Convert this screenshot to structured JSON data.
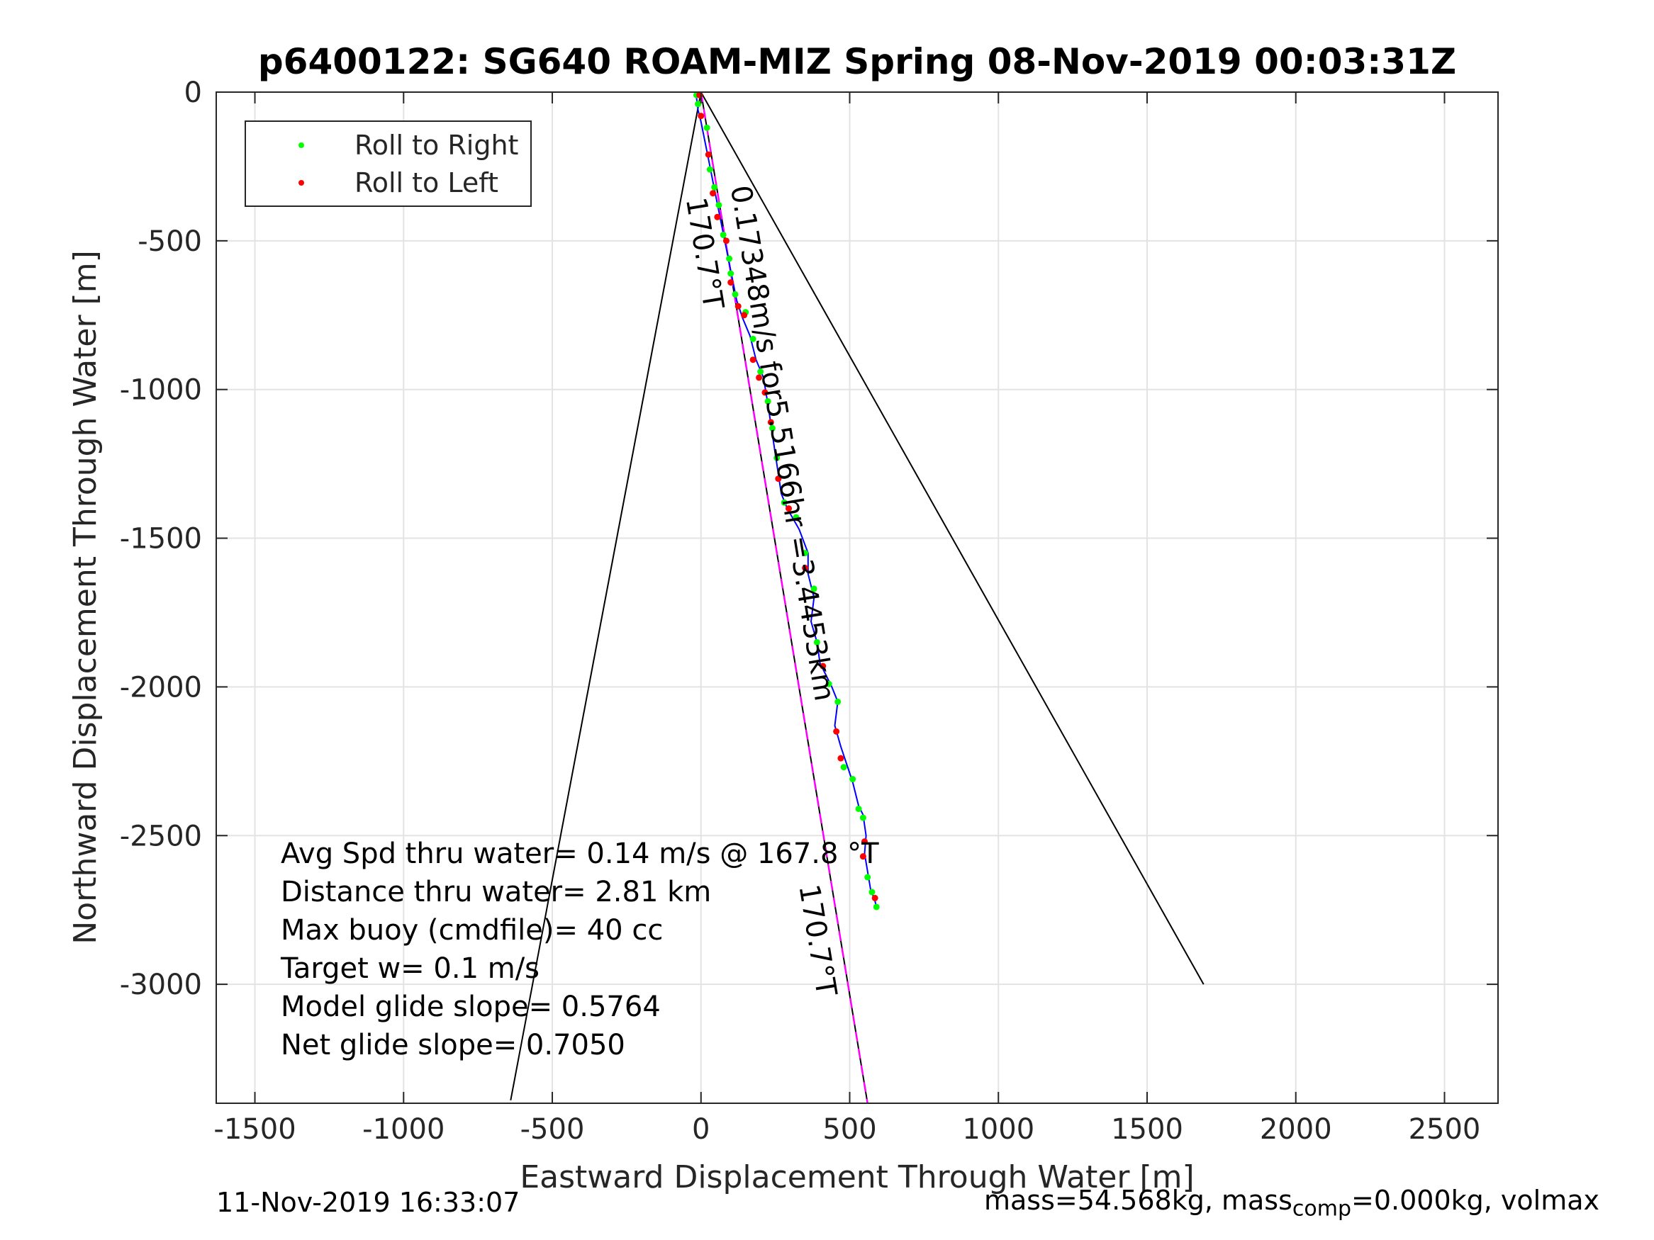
{
  "chart_data": {
    "type": "scatter",
    "title": "p6400122: SG640 ROAM-MIZ Spring 08-Nov-2019 00:03:31Z",
    "xlabel": "Eastward Displacement Through Water [m]",
    "ylabel": "Northward Displacement Through Water [m]",
    "xlim": [
      -1630,
      2680
    ],
    "ylim": [
      -3400,
      0
    ],
    "xticks": [
      -1500,
      -1000,
      -500,
      0,
      500,
      1000,
      1500,
      2000,
      2500
    ],
    "xtick_labels": [
      "-1500",
      "-1000",
      "-500",
      "0",
      "500",
      "1000",
      "1500",
      "2000",
      "2500"
    ],
    "yticks": [
      0,
      -500,
      -1000,
      -1500,
      -2000,
      -2500,
      -3000
    ],
    "ytick_labels": [
      "0",
      "-500",
      "-1000",
      "-1500",
      "-2000",
      "-2500",
      "-3000"
    ],
    "grid": true,
    "legend": {
      "placement": "top-left",
      "entries": [
        {
          "label": "Roll to Right",
          "color": "#00ff00"
        },
        {
          "label": "Roll to Left",
          "color": "#ff0000"
        }
      ]
    },
    "colors": {
      "track": "#0000ff",
      "heading_line": "#ff00ff",
      "cone_lines": "#000000",
      "roll_right": "#00ff00",
      "roll_left": "#ff0000"
    },
    "track": [
      [
        -15,
        -20
      ],
      [
        -10,
        -60
      ],
      [
        0,
        -100
      ],
      [
        10,
        -150
      ],
      [
        20,
        -200
      ],
      [
        30,
        -250
      ],
      [
        40,
        -300
      ],
      [
        50,
        -350
      ],
      [
        60,
        -400
      ],
      [
        70,
        -450
      ],
      [
        80,
        -500
      ],
      [
        90,
        -550
      ],
      [
        100,
        -600
      ],
      [
        110,
        -650
      ],
      [
        120,
        -700
      ],
      [
        140,
        -760
      ],
      [
        165,
        -820
      ],
      [
        185,
        -900
      ],
      [
        210,
        -960
      ],
      [
        225,
        -1050
      ],
      [
        240,
        -1150
      ],
      [
        255,
        -1250
      ],
      [
        270,
        -1350
      ],
      [
        290,
        -1400
      ],
      [
        330,
        -1470
      ],
      [
        360,
        -1550
      ],
      [
        360,
        -1620
      ],
      [
        380,
        -1700
      ],
      [
        370,
        -1780
      ],
      [
        390,
        -1850
      ],
      [
        400,
        -1920
      ],
      [
        440,
        -2000
      ],
      [
        460,
        -2050
      ],
      [
        450,
        -2130
      ],
      [
        470,
        -2200
      ],
      [
        490,
        -2260
      ],
      [
        510,
        -2320
      ],
      [
        530,
        -2400
      ],
      [
        545,
        -2430
      ],
      [
        555,
        -2500
      ],
      [
        550,
        -2560
      ],
      [
        560,
        -2620
      ],
      [
        570,
        -2680
      ],
      [
        585,
        -2720
      ],
      [
        590,
        -2740
      ]
    ],
    "roll_right_points": [
      [
        -15,
        -10
      ],
      [
        -10,
        -40
      ],
      [
        20,
        -120
      ],
      [
        30,
        -260
      ],
      [
        45,
        -320
      ],
      [
        60,
        -380
      ],
      [
        75,
        -480
      ],
      [
        95,
        -560
      ],
      [
        100,
        -610
      ],
      [
        115,
        -680
      ],
      [
        150,
        -740
      ],
      [
        175,
        -830
      ],
      [
        200,
        -940
      ],
      [
        225,
        -1040
      ],
      [
        240,
        -1130
      ],
      [
        255,
        -1230
      ],
      [
        280,
        -1380
      ],
      [
        320,
        -1430
      ],
      [
        350,
        -1550
      ],
      [
        380,
        -1670
      ],
      [
        390,
        -1850
      ],
      [
        430,
        -1990
      ],
      [
        460,
        -2050
      ],
      [
        480,
        -2270
      ],
      [
        510,
        -2310
      ],
      [
        530,
        -2410
      ],
      [
        545,
        -2440
      ],
      [
        560,
        -2640
      ],
      [
        575,
        -2690
      ],
      [
        590,
        -2740
      ]
    ],
    "roll_left_points": [
      [
        -5,
        -10
      ],
      [
        0,
        -80
      ],
      [
        25,
        -210
      ],
      [
        40,
        -340
      ],
      [
        55,
        -420
      ],
      [
        85,
        -500
      ],
      [
        100,
        -640
      ],
      [
        125,
        -720
      ],
      [
        145,
        -750
      ],
      [
        175,
        -900
      ],
      [
        195,
        -960
      ],
      [
        215,
        -1010
      ],
      [
        235,
        -1110
      ],
      [
        260,
        -1300
      ],
      [
        295,
        -1400
      ],
      [
        350,
        -1600
      ],
      [
        410,
        -1930
      ],
      [
        455,
        -2150
      ],
      [
        470,
        -2240
      ],
      [
        550,
        -2520
      ],
      [
        545,
        -2570
      ],
      [
        585,
        -2710
      ]
    ],
    "heading_line": {
      "heading_deg": 170.7,
      "from": [
        0,
        0
      ],
      "to": [
        560,
        -3400
      ]
    },
    "cone_lines": [
      {
        "from": [
          0,
          0
        ],
        "to": [
          -640,
          -3390
        ]
      },
      {
        "from": [
          0,
          0
        ],
        "to": [
          1690,
          -3000
        ]
      }
    ],
    "annotations": {
      "heading_top": "170.7°T",
      "heading_bottom": "170.7°T",
      "speed_label": "0.17348m/s for5.5166hr =3.4453km"
    },
    "info_lines": [
      "Avg Spd thru water=  0.14 m/s @ 167.8  °T",
      "Distance thru water=  2.81 km",
      "Max buoy (cmdfile)= 40 cc",
      "Target w= 0.1 m/s",
      "Model glide slope= 0.5764",
      "Net glide slope= 0.7050"
    ]
  },
  "footer": {
    "timestamp": "11-Nov-2019 16:33:07",
    "mass_prefix": "mass=54.568kg, mass",
    "mass_sub": "comp",
    "mass_suffix": "=0.000kg, volmax"
  }
}
